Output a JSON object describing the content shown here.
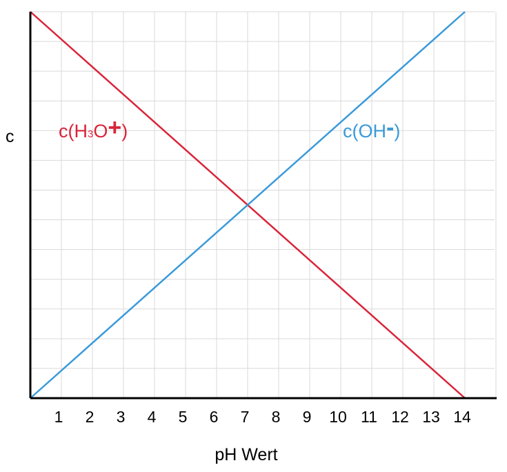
{
  "chart_data": {
    "type": "line",
    "title": "",
    "xlabel": "pH Wert",
    "ylabel": "c",
    "x_ticks": [
      1,
      2,
      3,
      4,
      5,
      6,
      7,
      8,
      9,
      10,
      11,
      12,
      13,
      14
    ],
    "xlim": [
      0,
      15
    ],
    "ylim": [
      0,
      1
    ],
    "grid": true,
    "legend": "inline",
    "series": [
      {
        "name": "c(H3O+)",
        "label_parts": {
          "prefix": "c(H",
          "sub": "3",
          "mid": "O",
          "sup": "+",
          "suffix": ")"
        },
        "color": "#d9243a",
        "x": [
          0,
          14
        ],
        "y": [
          1,
          0
        ]
      },
      {
        "name": "c(OH-)",
        "label_parts": {
          "prefix": "c(OH",
          "sup": "-",
          "suffix": ")"
        },
        "color": "#3a9ad9",
        "x": [
          0,
          14
        ],
        "y": [
          0,
          1
        ]
      }
    ]
  },
  "colors": {
    "axis": "#000000",
    "grid": "#d9d9d9"
  }
}
